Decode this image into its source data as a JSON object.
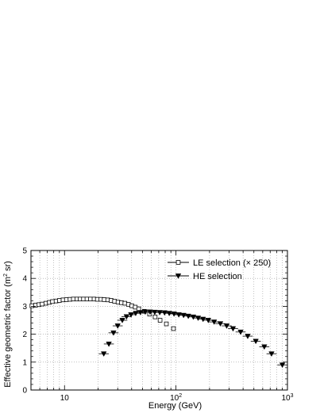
{
  "chart_data": {
    "type": "scatter",
    "title": "",
    "xlabel": "Energy (GeV)",
    "ylabel_parts": {
      "before": "Effective geometric factor (m",
      "sup": "2",
      "after": " sr)"
    },
    "xscale": "log",
    "xlim": [
      5,
      1000
    ],
    "ylim": [
      0,
      5
    ],
    "x_ticks": [
      {
        "value": 10,
        "base": "10",
        "sup": ""
      },
      {
        "value": 100,
        "base": "10",
        "sup": "2"
      },
      {
        "value": 1000,
        "base": "10",
        "sup": "3"
      }
    ],
    "y_ticks": [
      {
        "value": 0,
        "label": "0"
      },
      {
        "value": 1,
        "label": "1"
      },
      {
        "value": 2,
        "label": "2"
      },
      {
        "value": 3,
        "label": "3"
      },
      {
        "value": 4,
        "label": "4"
      },
      {
        "value": 5,
        "label": "5"
      }
    ],
    "grid": true,
    "legend_position": "top-right",
    "series": [
      {
        "name": "LE selection (× 250)",
        "marker": "open-square",
        "color": "#000000",
        "x": [
          5.1,
          5.5,
          5.9,
          6.3,
          6.8,
          7.3,
          7.8,
          8.4,
          9.0,
          9.7,
          10.4,
          11.2,
          12.0,
          12.9,
          13.8,
          14.8,
          15.9,
          17.1,
          18.4,
          19.7,
          21.2,
          22.7,
          24.4,
          26.2,
          28.1,
          30.2,
          32.4,
          34.8,
          37.4,
          40.1,
          43.1,
          46.3,
          52.0,
          58.0,
          65.0,
          72.0,
          82.0,
          95.0
        ],
        "y": [
          3.02,
          3.04,
          3.06,
          3.08,
          3.11,
          3.14,
          3.17,
          3.19,
          3.21,
          3.23,
          3.24,
          3.25,
          3.26,
          3.26,
          3.26,
          3.26,
          3.26,
          3.26,
          3.26,
          3.25,
          3.25,
          3.24,
          3.23,
          3.21,
          3.18,
          3.15,
          3.13,
          3.11,
          3.07,
          3.02,
          2.97,
          2.91,
          2.82,
          2.72,
          2.62,
          2.5,
          2.37,
          2.2
        ]
      },
      {
        "name": "HE selection",
        "marker": "filled-triangle-down",
        "color": "#000000",
        "x": [
          22.5,
          25.0,
          27.5,
          30.0,
          33.0,
          36.0,
          39.5,
          43.5,
          48.0,
          53.0,
          58.5,
          64.5,
          71.5,
          79.0,
          87.0,
          96.0,
          106.0,
          117.0,
          129.0,
          143.0,
          158.0,
          175.0,
          195.0,
          220.0,
          250.0,
          285.0,
          325.0,
          380.0,
          440.0,
          520.0,
          620.0,
          720.0,
          900.0
        ],
        "y": [
          1.3,
          1.65,
          2.05,
          2.3,
          2.5,
          2.63,
          2.7,
          2.75,
          2.78,
          2.8,
          2.8,
          2.79,
          2.78,
          2.77,
          2.75,
          2.73,
          2.7,
          2.68,
          2.65,
          2.62,
          2.58,
          2.54,
          2.5,
          2.44,
          2.38,
          2.3,
          2.2,
          2.08,
          1.93,
          1.75,
          1.55,
          1.3,
          0.9
        ]
      }
    ]
  }
}
